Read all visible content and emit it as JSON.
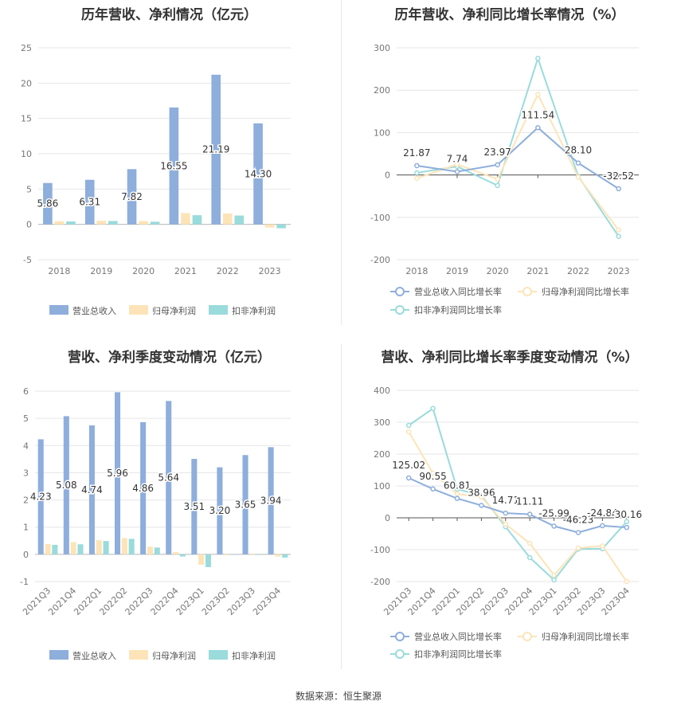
{
  "source_text": "数据来源：恒生聚源",
  "colors": {
    "revenue": "#8eaedc",
    "net_profit": "#fde4b8",
    "deducted_profit": "#9adbdc"
  },
  "chart_data": [
    {
      "type": "bar",
      "title": "历年营收、净利情况（亿元）",
      "categories": [
        "2018",
        "2019",
        "2020",
        "2021",
        "2022",
        "2023"
      ],
      "ylim": [
        -5,
        25
      ],
      "yticks": [
        -5,
        0,
        5,
        10,
        15,
        20,
        25
      ],
      "legend_position": "bottom",
      "series": [
        {
          "name": "营业总收入",
          "values": [
            5.86,
            6.31,
            7.82,
            16.55,
            21.19,
            14.3
          ],
          "labels": [
            "5.86",
            "6.31",
            "7.82",
            "16.55",
            "21.19",
            "14.30"
          ],
          "color": "#8eaedc"
        },
        {
          "name": "归母净利润",
          "values": [
            0.45,
            0.52,
            0.48,
            1.6,
            1.55,
            -0.45
          ],
          "color": "#fde4b8"
        },
        {
          "name": "扣非净利润",
          "values": [
            0.42,
            0.48,
            0.38,
            1.3,
            1.25,
            -0.55
          ],
          "color": "#9adbdc"
        }
      ]
    },
    {
      "type": "line",
      "title": "历年营收、净利同比增长率情况（%）",
      "categories": [
        "2018",
        "2019",
        "2020",
        "2021",
        "2022",
        "2023"
      ],
      "ylim": [
        -200,
        300
      ],
      "yticks": [
        -200,
        -100,
        0,
        100,
        200,
        300
      ],
      "legend_position": "bottom",
      "series": [
        {
          "name": "营业总收入同比增长率",
          "values": [
            21.87,
            7.74,
            23.97,
            111.54,
            28.1,
            -32.52
          ],
          "labels": [
            "21.87",
            "7.74",
            "23.97",
            "111.54",
            "28.10",
            "-32.52"
          ],
          "color": "#8eaedc"
        },
        {
          "name": "归母净利润同比增长率",
          "values": [
            -8,
            25,
            -10,
            190,
            -5,
            -130
          ],
          "color": "#fde4b8"
        },
        {
          "name": "扣非净利润同比增长率",
          "values": [
            5,
            20,
            -25,
            275,
            -3,
            -145
          ],
          "color": "#9adbdc"
        }
      ]
    },
    {
      "type": "bar",
      "title": "营收、净利季度变动情况（亿元）",
      "categories": [
        "2021Q3",
        "2021Q4",
        "2022Q1",
        "2022Q2",
        "2022Q3",
        "2022Q4",
        "2023Q1",
        "2023Q2",
        "2023Q3",
        "2023Q4"
      ],
      "ylim": [
        -1,
        6
      ],
      "yticks": [
        -1,
        0,
        1,
        2,
        3,
        4,
        5,
        6
      ],
      "legend_position": "bottom",
      "series": [
        {
          "name": "营业总收入",
          "values": [
            4.23,
            5.08,
            4.74,
            5.96,
            4.86,
            5.64,
            3.51,
            3.2,
            3.65,
            3.94
          ],
          "labels": [
            "4.23",
            "5.08",
            "4.74",
            "5.96",
            "4.86",
            "5.64",
            "3.51",
            "3.20",
            "3.65",
            "3.94"
          ],
          "color": "#8eaedc"
        },
        {
          "name": "归母净利润",
          "values": [
            0.38,
            0.45,
            0.52,
            0.6,
            0.28,
            0.08,
            -0.38,
            -0.03,
            0.02,
            -0.08
          ],
          "color": "#fde4b8"
        },
        {
          "name": "扣非净利润",
          "values": [
            0.35,
            0.37,
            0.49,
            0.57,
            0.25,
            -0.08,
            -0.47,
            -0.02,
            0.0,
            -0.12
          ],
          "color": "#9adbdc"
        }
      ]
    },
    {
      "type": "line",
      "title": "营收、净利同比增长率季度变动情况（%）",
      "categories": [
        "2021Q3",
        "2021Q4",
        "2022Q1",
        "2022Q2",
        "2022Q3",
        "2022Q4",
        "2023Q1",
        "2023Q2",
        "2023Q3",
        "2023Q4"
      ],
      "ylim": [
        -200,
        400
      ],
      "yticks": [
        -200,
        -100,
        0,
        100,
        200,
        300,
        400
      ],
      "legend_position": "bottom",
      "series": [
        {
          "name": "营业总收入同比增长率",
          "values": [
            125.02,
            90.55,
            60.81,
            38.96,
            14.71,
            11.11,
            -25.99,
            -46.23,
            -24.84,
            -30.16
          ],
          "labels": [
            "125.02",
            "90.55",
            "60.81",
            "38.96",
            "14.71",
            "11.11",
            "-25.99",
            "-46.23",
            "-24.84",
            "-30.16"
          ],
          "color": "#8eaedc"
        },
        {
          "name": "归母净利润同比增长率",
          "values": [
            270,
            140,
            75,
            65,
            -20,
            -80,
            -180,
            -95,
            -88,
            -200
          ],
          "color": "#fde4b8"
        },
        {
          "name": "扣非净利润同比增长率",
          "values": [
            290,
            343,
            90,
            70,
            -28,
            -125,
            -195,
            -98,
            -97,
            -12
          ],
          "color": "#9adbdc"
        }
      ]
    }
  ]
}
